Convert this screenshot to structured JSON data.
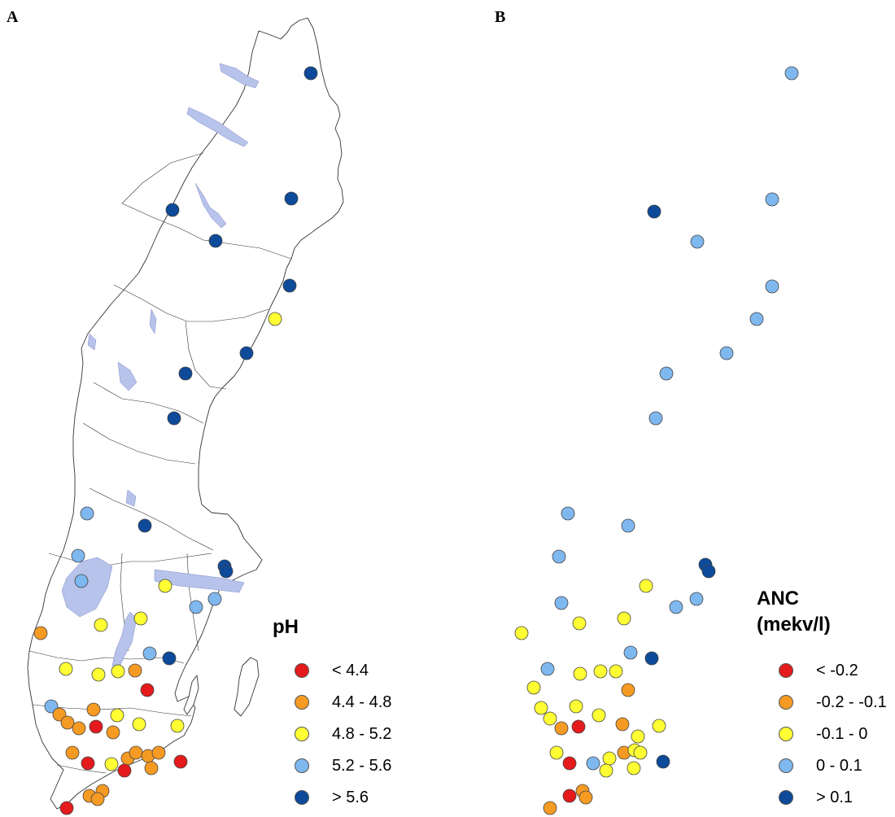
{
  "panels": [
    {
      "letter": "A",
      "legend": {
        "title": "pH",
        "subtitle": "",
        "classes": [
          {
            "label": "< 4.4",
            "color": "#e41a1c"
          },
          {
            "label": "4.4 - 4.8",
            "color": "#f59a23"
          },
          {
            "label": "4.8 - 5.2",
            "color": "#ffff33"
          },
          {
            "label": "5.2 - 5.6",
            "color": "#7fb7ef"
          },
          {
            "label": "> 5.6",
            "color": "#0d4a9a"
          }
        ]
      }
    },
    {
      "letter": "B",
      "legend": {
        "title": "ANC",
        "subtitle": "(mekv/l)",
        "classes": [
          {
            "label": "< -0.2",
            "color": "#e41a1c"
          },
          {
            "label": "-0.2 - -0.1",
            "color": "#f59a23"
          },
          {
            "label": "-0.1 - 0",
            "color": "#ffff33"
          },
          {
            "label": "0 - 0.1",
            "color": "#7fb7ef"
          },
          {
            "label": "> 0.1",
            "color": "#0d4a9a"
          }
        ]
      }
    }
  ],
  "colors": {
    "land_fill": "#ffffff",
    "outline": "#333333",
    "lake_fill": "#b7c3ea"
  }
}
